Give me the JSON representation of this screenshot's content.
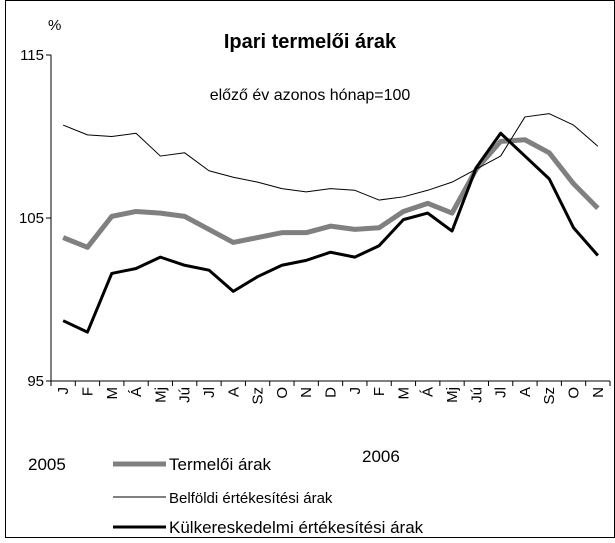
{
  "chart_data": {
    "type": "line",
    "title": "Ipari termelői árak",
    "subtitle": "előző év azonos hónap=100",
    "y_label": "%",
    "categories": [
      "J",
      "F",
      "M",
      "Á",
      "Mj",
      "Jú",
      "Jl",
      "A",
      "Sz",
      "O",
      "N",
      "D",
      "J",
      "F",
      "M",
      "Á",
      "Mj",
      "Jú",
      "Jl",
      "A",
      "Sz",
      "O",
      "N"
    ],
    "year_labels": [
      "2005",
      "2006"
    ],
    "ylim": [
      95,
      115
    ],
    "yticks": [
      95,
      105,
      115
    ],
    "series": [
      {
        "name": "Termelői árak",
        "color": "#808080",
        "values": [
          103.8,
          103.2,
          105.1,
          105.4,
          105.3,
          105.1,
          104.3,
          103.5,
          103.8,
          104.1,
          104.1,
          104.5,
          104.3,
          104.4,
          105.4,
          105.9,
          105.3,
          108.0,
          109.7,
          109.8,
          109.0,
          107.1,
          105.6
        ]
      },
      {
        "name": "Belföldi értékesítési árak",
        "color": "#000000",
        "values": [
          110.7,
          110.1,
          110.0,
          110.2,
          108.8,
          109.0,
          107.9,
          107.5,
          107.2,
          106.8,
          106.6,
          106.8,
          106.7,
          106.1,
          106.3,
          106.7,
          107.2,
          108.0,
          108.8,
          111.2,
          111.4,
          110.7,
          109.4
        ]
      },
      {
        "name": "Külkereskedelmi értékesítési árak",
        "color": "#000000",
        "values": [
          98.7,
          98.0,
          101.6,
          101.9,
          102.6,
          102.1,
          101.8,
          100.5,
          101.4,
          102.1,
          102.4,
          102.9,
          102.6,
          103.3,
          104.9,
          105.3,
          104.2,
          108.1,
          110.2,
          108.8,
          107.4,
          104.4,
          102.7
        ]
      }
    ]
  }
}
